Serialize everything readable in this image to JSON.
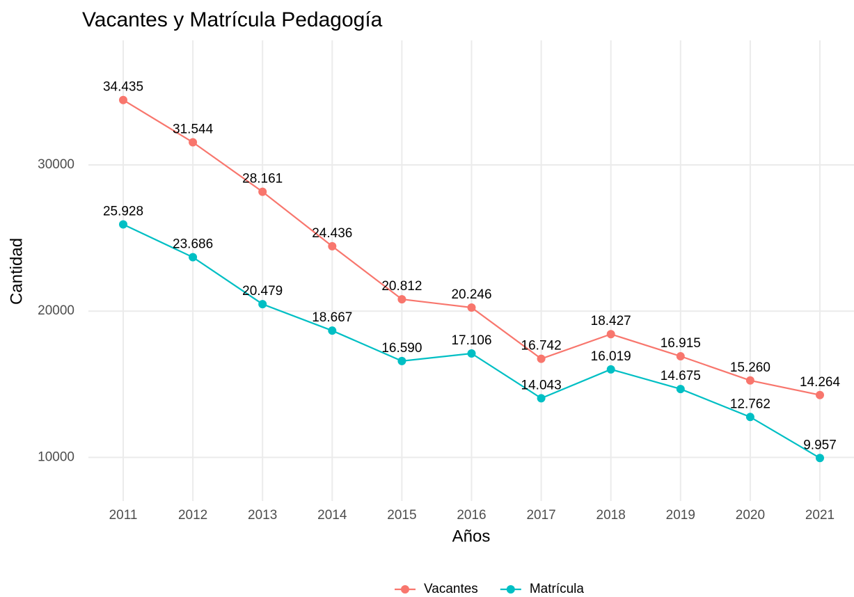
{
  "chart_data": {
    "type": "line",
    "title": "Vacantes y Matrícula Pedagogía",
    "x_label": "Años",
    "y_label": "Cantidad",
    "categories": [
      "2011",
      "2012",
      "2013",
      "2014",
      "2015",
      "2016",
      "2017",
      "2018",
      "2019",
      "2020",
      "2021"
    ],
    "series": [
      {
        "name": "Vacantes",
        "color": "#F8766D",
        "values": [
          34435,
          31544,
          28161,
          24436,
          20812,
          20246,
          16742,
          18427,
          16915,
          15260,
          14264
        ],
        "value_labels": [
          "34.435",
          "31.544",
          "28.161",
          "24.436",
          "20.812",
          "20.246",
          "16.742",
          "18.427",
          "16.915",
          "15.260",
          "14.264"
        ]
      },
      {
        "name": "Matrícula",
        "color": "#00BFC4",
        "values": [
          25928,
          23686,
          20479,
          18667,
          16590,
          17106,
          14043,
          16019,
          14675,
          12762,
          9957
        ],
        "value_labels": [
          "25.928",
          "23.686",
          "20.479",
          "18.667",
          "16.590",
          "17.106",
          "14.043",
          "16.019",
          "14.675",
          "12.762",
          "9.957"
        ]
      }
    ],
    "ylim": [
      8733,
      35659
    ],
    "yticks": [
      10000,
      20000,
      30000
    ],
    "grid": true,
    "legend": "bottom"
  }
}
